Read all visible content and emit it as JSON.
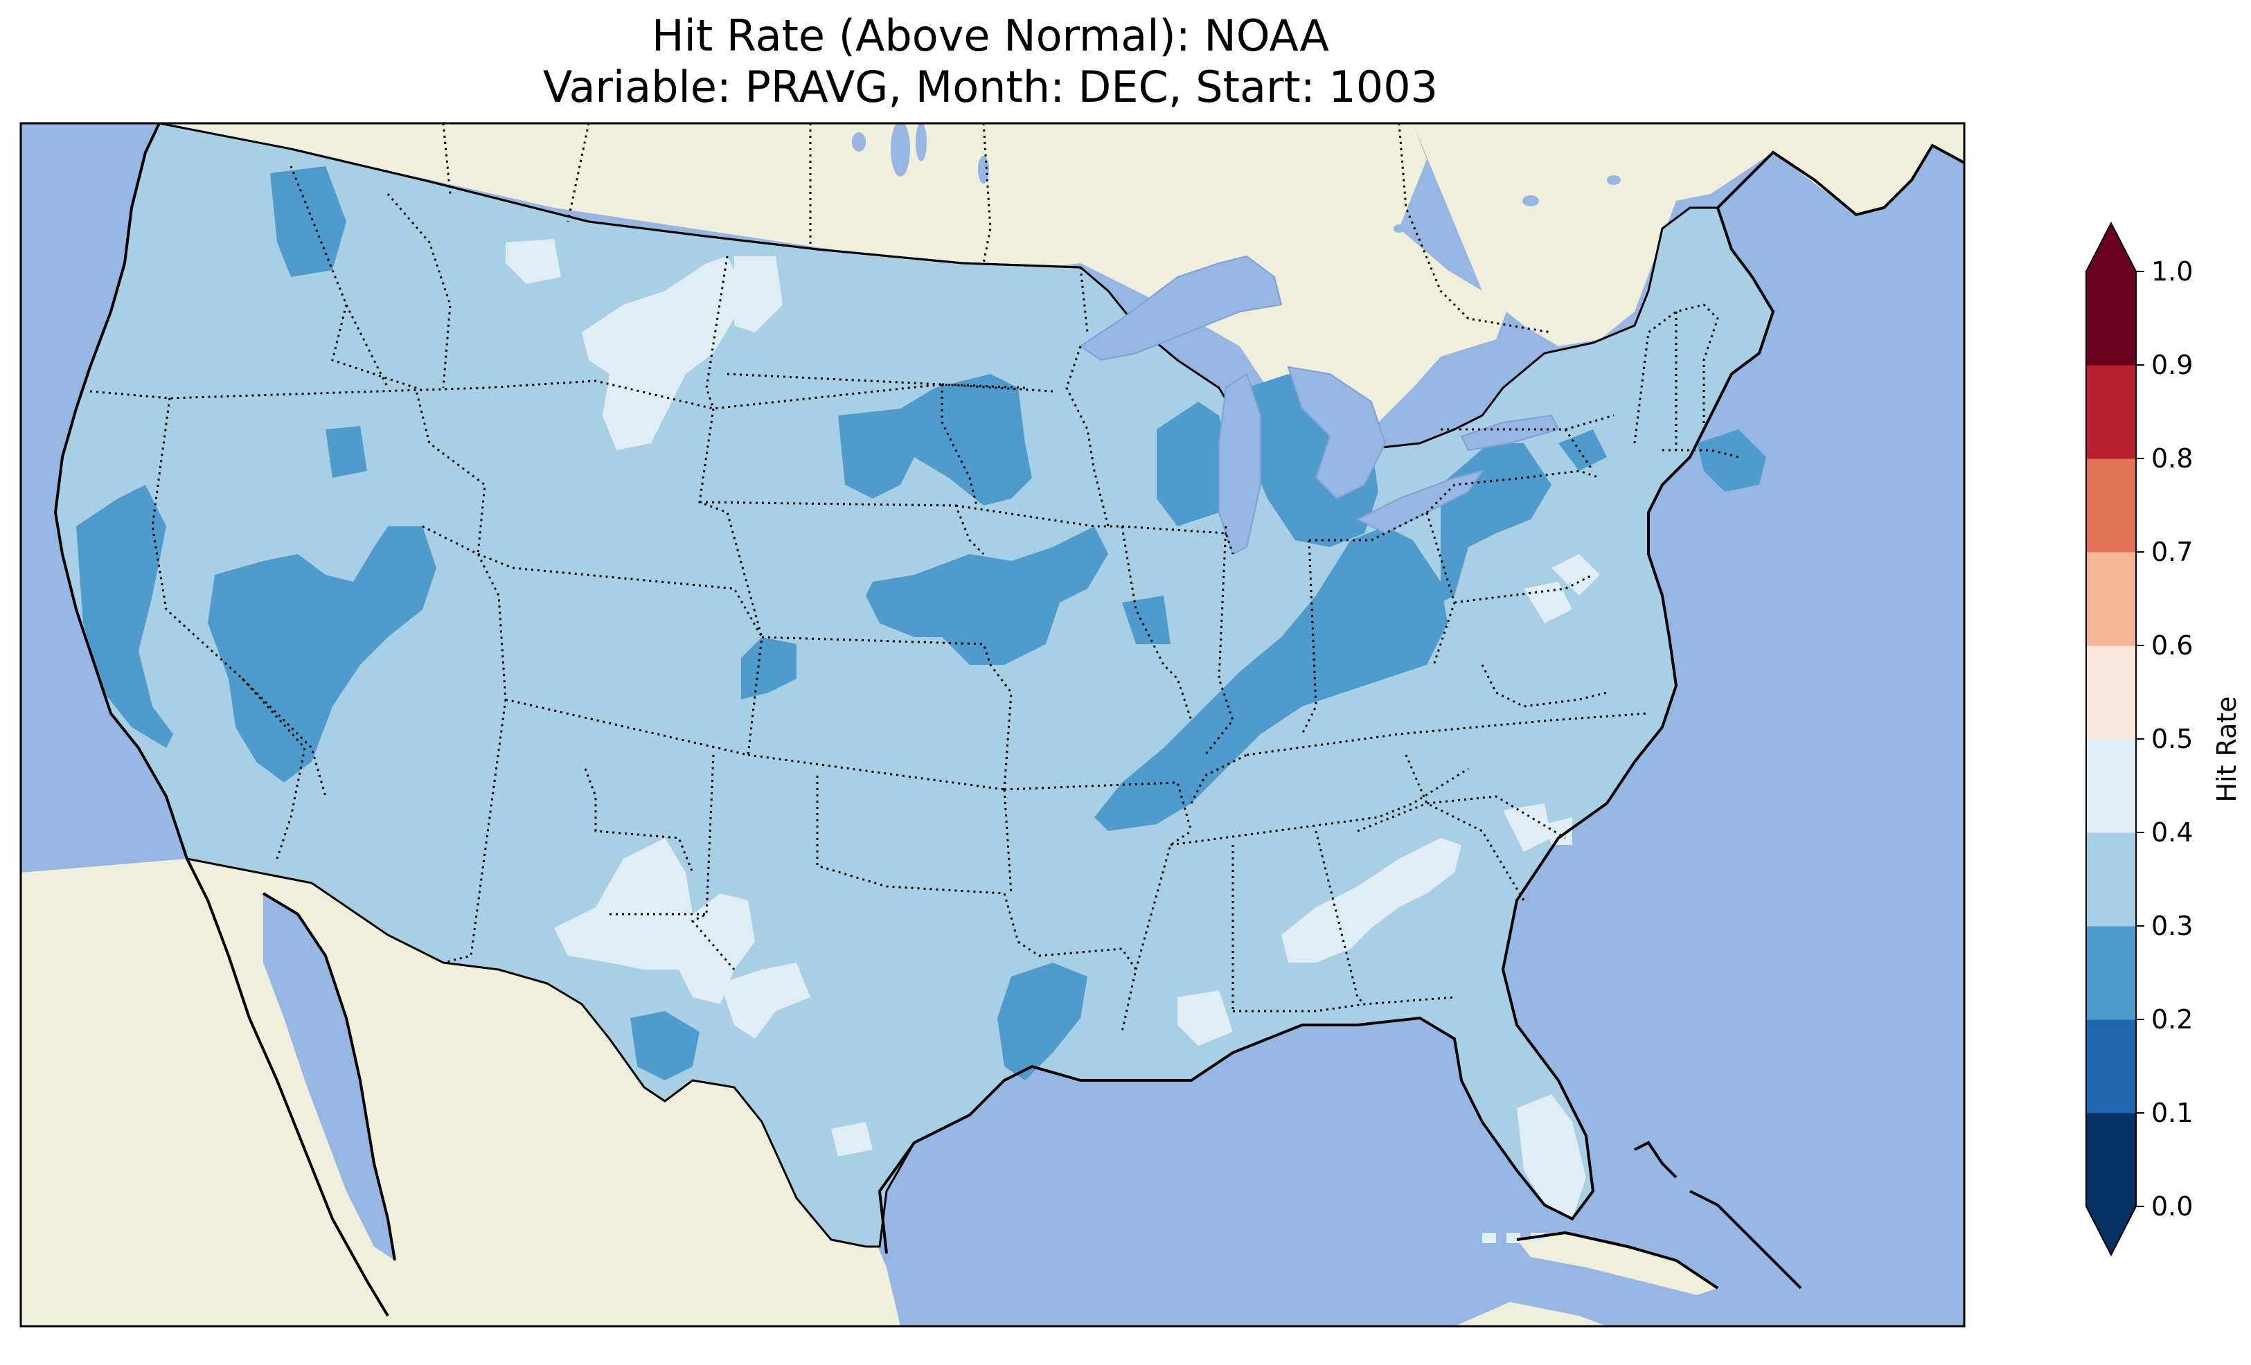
{
  "title": {
    "line1": "Hit Rate (Above Normal): NOAA",
    "line2": "Variable: PRAVG, Month: DEC, Start: 1003"
  },
  "map": {
    "region": "Contiguous United States",
    "colors": {
      "ocean": "#97b6e1",
      "land": "#efefdc",
      "lakes": "#97b6e1"
    },
    "dominant_class": "0.3-0.4",
    "notable_regions": [
      {
        "name": "California / Nevada",
        "class": "0.2-0.3"
      },
      {
        "name": "Ohio Valley / Kentucky-Tennessee band",
        "class": "0.2-0.3"
      },
      {
        "name": "Michigan",
        "class": "0.2-0.3"
      },
      {
        "name": "South Dakota / Nebraska",
        "class": "0.2-0.3"
      },
      {
        "name": "Wyoming / Montana",
        "class": "0.4-0.5"
      },
      {
        "name": "New Mexico / West Texas",
        "class": "0.4-0.5"
      },
      {
        "name": "Alabama / Georgia / South Carolina",
        "class": "0.4-0.5"
      },
      {
        "name": "South Florida",
        "class": "0.4-0.5"
      }
    ]
  },
  "colorbar": {
    "label": "Hit Rate",
    "ticks": [
      "0.0",
      "0.1",
      "0.2",
      "0.3",
      "0.4",
      "0.5",
      "0.6",
      "0.7",
      "0.8",
      "0.9",
      "1.0"
    ],
    "extend": "both",
    "colors": [
      "#053061",
      "#2166ac",
      "#4393c3",
      "#92c5de",
      "#d1e5f0",
      "#fddbc7",
      "#f4a582",
      "#d6604d",
      "#b2182b",
      "#67001f"
    ],
    "display_colors": [
      "#053061",
      "#2166ac",
      "#4f9bcb",
      "#a8cfe3",
      "#e1edf4",
      "#f8e6dc",
      "#f4b698",
      "#e07358",
      "#b7212e",
      "#69001f"
    ]
  }
}
